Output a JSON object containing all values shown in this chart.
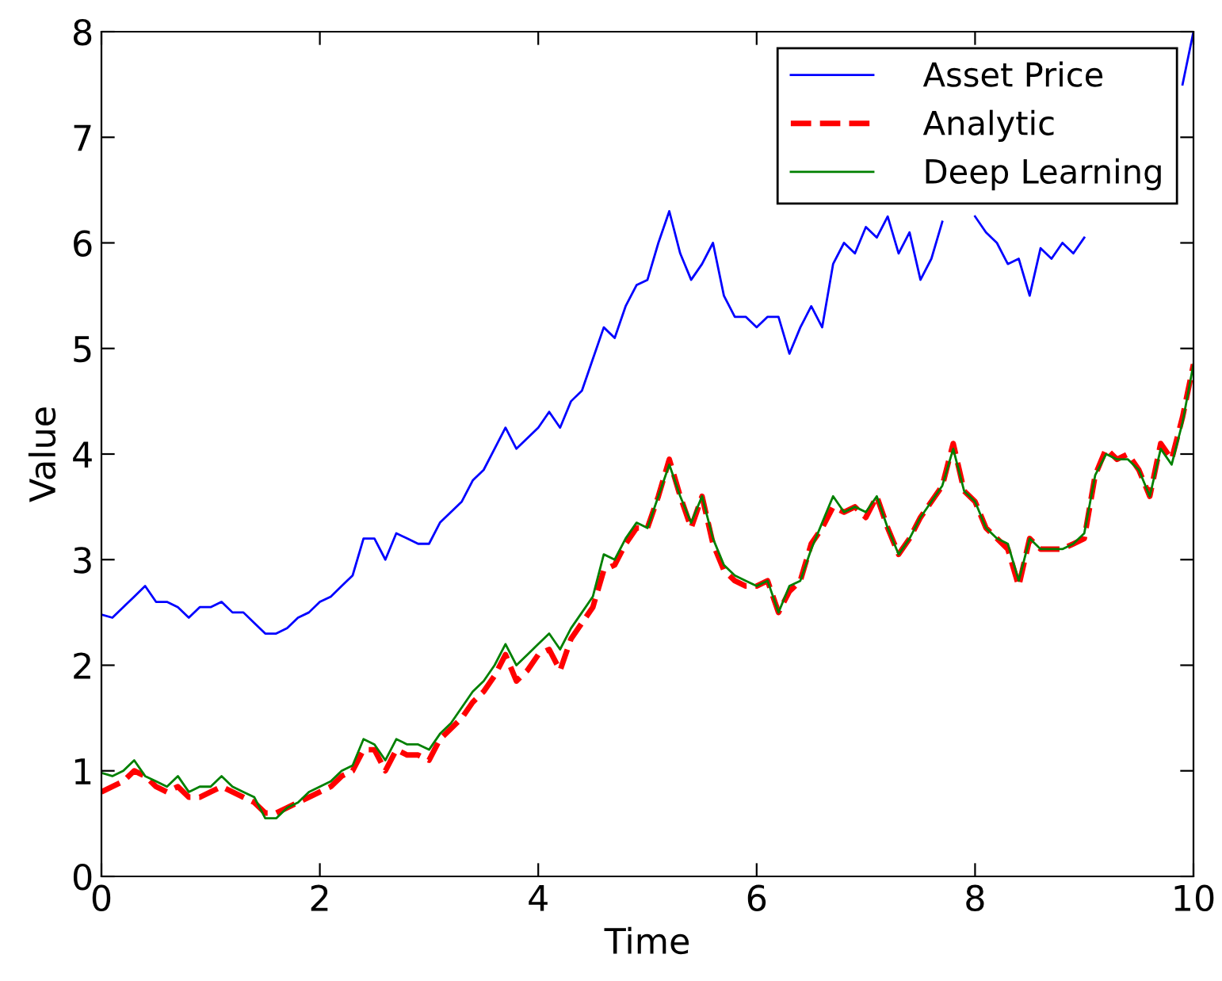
{
  "chart_data": {
    "type": "line",
    "xlabel": "Time",
    "ylabel": "Value",
    "xlim": [
      0,
      10
    ],
    "ylim": [
      0,
      8
    ],
    "xticks": [
      0,
      2,
      4,
      6,
      8,
      10
    ],
    "yticks": [
      0,
      1,
      2,
      3,
      4,
      5,
      6,
      7,
      8
    ],
    "grid": false,
    "legend": "top right",
    "x": [
      0,
      0.1,
      0.2,
      0.3,
      0.4,
      0.5,
      0.6,
      0.7,
      0.8,
      0.9,
      1,
      1.1,
      1.2,
      1.3,
      1.4,
      1.5,
      1.6,
      1.7,
      1.8,
      1.9,
      2,
      2.1,
      2.2,
      2.3,
      2.4,
      2.5,
      2.6,
      2.7,
      2.8,
      2.9,
      3,
      3.1,
      3.2,
      3.3,
      3.4,
      3.5,
      3.6,
      3.7,
      3.8,
      3.9,
      4,
      4.1,
      4.2,
      4.3,
      4.4,
      4.5,
      4.6,
      4.7,
      4.8,
      4.9,
      5,
      5.1,
      5.2,
      5.3,
      5.4,
      5.5,
      5.6,
      5.7,
      5.8,
      5.9,
      6,
      6.1,
      6.2,
      6.3,
      6.4,
      6.5,
      6.6,
      6.7,
      6.8,
      6.9,
      7,
      7.1,
      7.2,
      7.3,
      7.4,
      7.5,
      7.6,
      7.7,
      7.8,
      7.9,
      8,
      8.1,
      8.2,
      8.3,
      8.4,
      8.5,
      8.6,
      8.7,
      8.8,
      8.9,
      9,
      9.1,
      9.2,
      9.3,
      9.4,
      9.5,
      9.6,
      9.7,
      9.8,
      9.9,
      10
    ],
    "series": [
      {
        "name": "Asset Price",
        "color": "#0000ff",
        "line_style": "solid",
        "values": [
          2.48,
          2.45,
          2.55,
          2.65,
          2.75,
          2.6,
          2.6,
          2.55,
          2.45,
          2.55,
          2.55,
          2.6,
          2.5,
          2.5,
          2.4,
          2.3,
          2.3,
          2.35,
          2.45,
          2.5,
          2.6,
          2.65,
          2.75,
          2.85,
          3.2,
          3.2,
          3.0,
          3.25,
          3.2,
          3.15,
          3.15,
          3.35,
          3.45,
          3.55,
          3.75,
          3.85,
          4.05,
          4.25,
          4.05,
          4.15,
          4.25,
          4.4,
          4.25,
          4.5,
          4.6,
          4.9,
          5.2,
          5.1,
          5.4,
          5.6,
          5.65,
          6.0,
          6.3,
          5.9,
          5.65,
          5.8,
          6.0,
          5.5,
          5.3,
          5.3,
          5.2,
          5.3,
          5.3,
          4.95,
          5.2,
          5.4,
          5.2,
          5.8,
          6.0,
          5.9,
          6.15,
          6.05,
          6.25,
          5.9,
          6.1,
          5.65,
          5.85,
          6.2,
          null,
          null,
          6.25,
          6.1,
          6.0,
          5.8,
          5.85,
          5.5,
          5.95,
          5.85,
          6.0,
          5.9,
          6.05,
          null,
          null,
          null,
          null,
          null,
          null,
          null,
          null,
          7.5,
          8.0
        ]
      },
      {
        "name": "Analytic",
        "color": "#ff0000",
        "line_style": "dashed",
        "values": [
          0.8,
          0.85,
          0.9,
          1.0,
          0.95,
          0.85,
          0.8,
          0.85,
          0.75,
          0.75,
          0.8,
          0.85,
          0.8,
          0.75,
          0.7,
          0.6,
          0.6,
          0.65,
          0.7,
          0.75,
          0.8,
          0.85,
          0.95,
          1.0,
          1.2,
          1.2,
          1.0,
          1.2,
          1.15,
          1.15,
          1.1,
          1.3,
          1.4,
          1.5,
          1.65,
          1.75,
          1.9,
          2.1,
          1.85,
          1.95,
          2.1,
          2.15,
          1.95,
          2.25,
          2.4,
          2.55,
          2.9,
          2.95,
          3.15,
          3.3,
          3.3,
          3.6,
          3.95,
          3.6,
          3.3,
          3.6,
          3.15,
          2.9,
          2.8,
          2.75,
          2.75,
          2.8,
          2.5,
          2.7,
          2.8,
          3.15,
          3.3,
          3.5,
          3.45,
          3.5,
          3.4,
          3.6,
          3.3,
          3.05,
          3.2,
          3.4,
          3.55,
          3.7,
          4.1,
          3.65,
          3.55,
          3.3,
          3.2,
          3.1,
          2.75,
          3.2,
          3.1,
          3.1,
          3.1,
          3.15,
          3.2,
          3.8,
          4.05,
          3.95,
          4.0,
          3.85,
          3.6,
          4.1,
          3.95,
          4.35,
          4.85
        ]
      },
      {
        "name": "Deep Learning",
        "color": "#008000",
        "line_style": "solid",
        "values": [
          0.98,
          0.95,
          1.0,
          1.1,
          0.95,
          0.9,
          0.85,
          0.95,
          0.8,
          0.85,
          0.85,
          0.95,
          0.85,
          0.8,
          0.75,
          0.55,
          0.55,
          0.65,
          0.7,
          0.8,
          0.85,
          0.9,
          1.0,
          1.05,
          1.3,
          1.25,
          1.1,
          1.3,
          1.25,
          1.25,
          1.2,
          1.35,
          1.45,
          1.6,
          1.75,
          1.85,
          2.0,
          2.2,
          2.0,
          2.1,
          2.2,
          2.3,
          2.15,
          2.35,
          2.5,
          2.65,
          3.05,
          3.0,
          3.2,
          3.35,
          3.3,
          3.6,
          3.9,
          3.6,
          3.35,
          3.6,
          3.2,
          2.95,
          2.85,
          2.8,
          2.75,
          2.8,
          2.5,
          2.75,
          2.8,
          3.1,
          3.35,
          3.6,
          3.45,
          3.5,
          3.45,
          3.6,
          3.3,
          3.05,
          3.2,
          3.4,
          3.55,
          3.7,
          4.05,
          3.65,
          3.55,
          3.3,
          3.2,
          3.15,
          2.8,
          3.2,
          3.1,
          3.1,
          3.1,
          3.15,
          3.25,
          3.8,
          4.0,
          3.95,
          3.95,
          3.85,
          3.6,
          4.05,
          3.9,
          4.3,
          4.85
        ]
      }
    ]
  }
}
